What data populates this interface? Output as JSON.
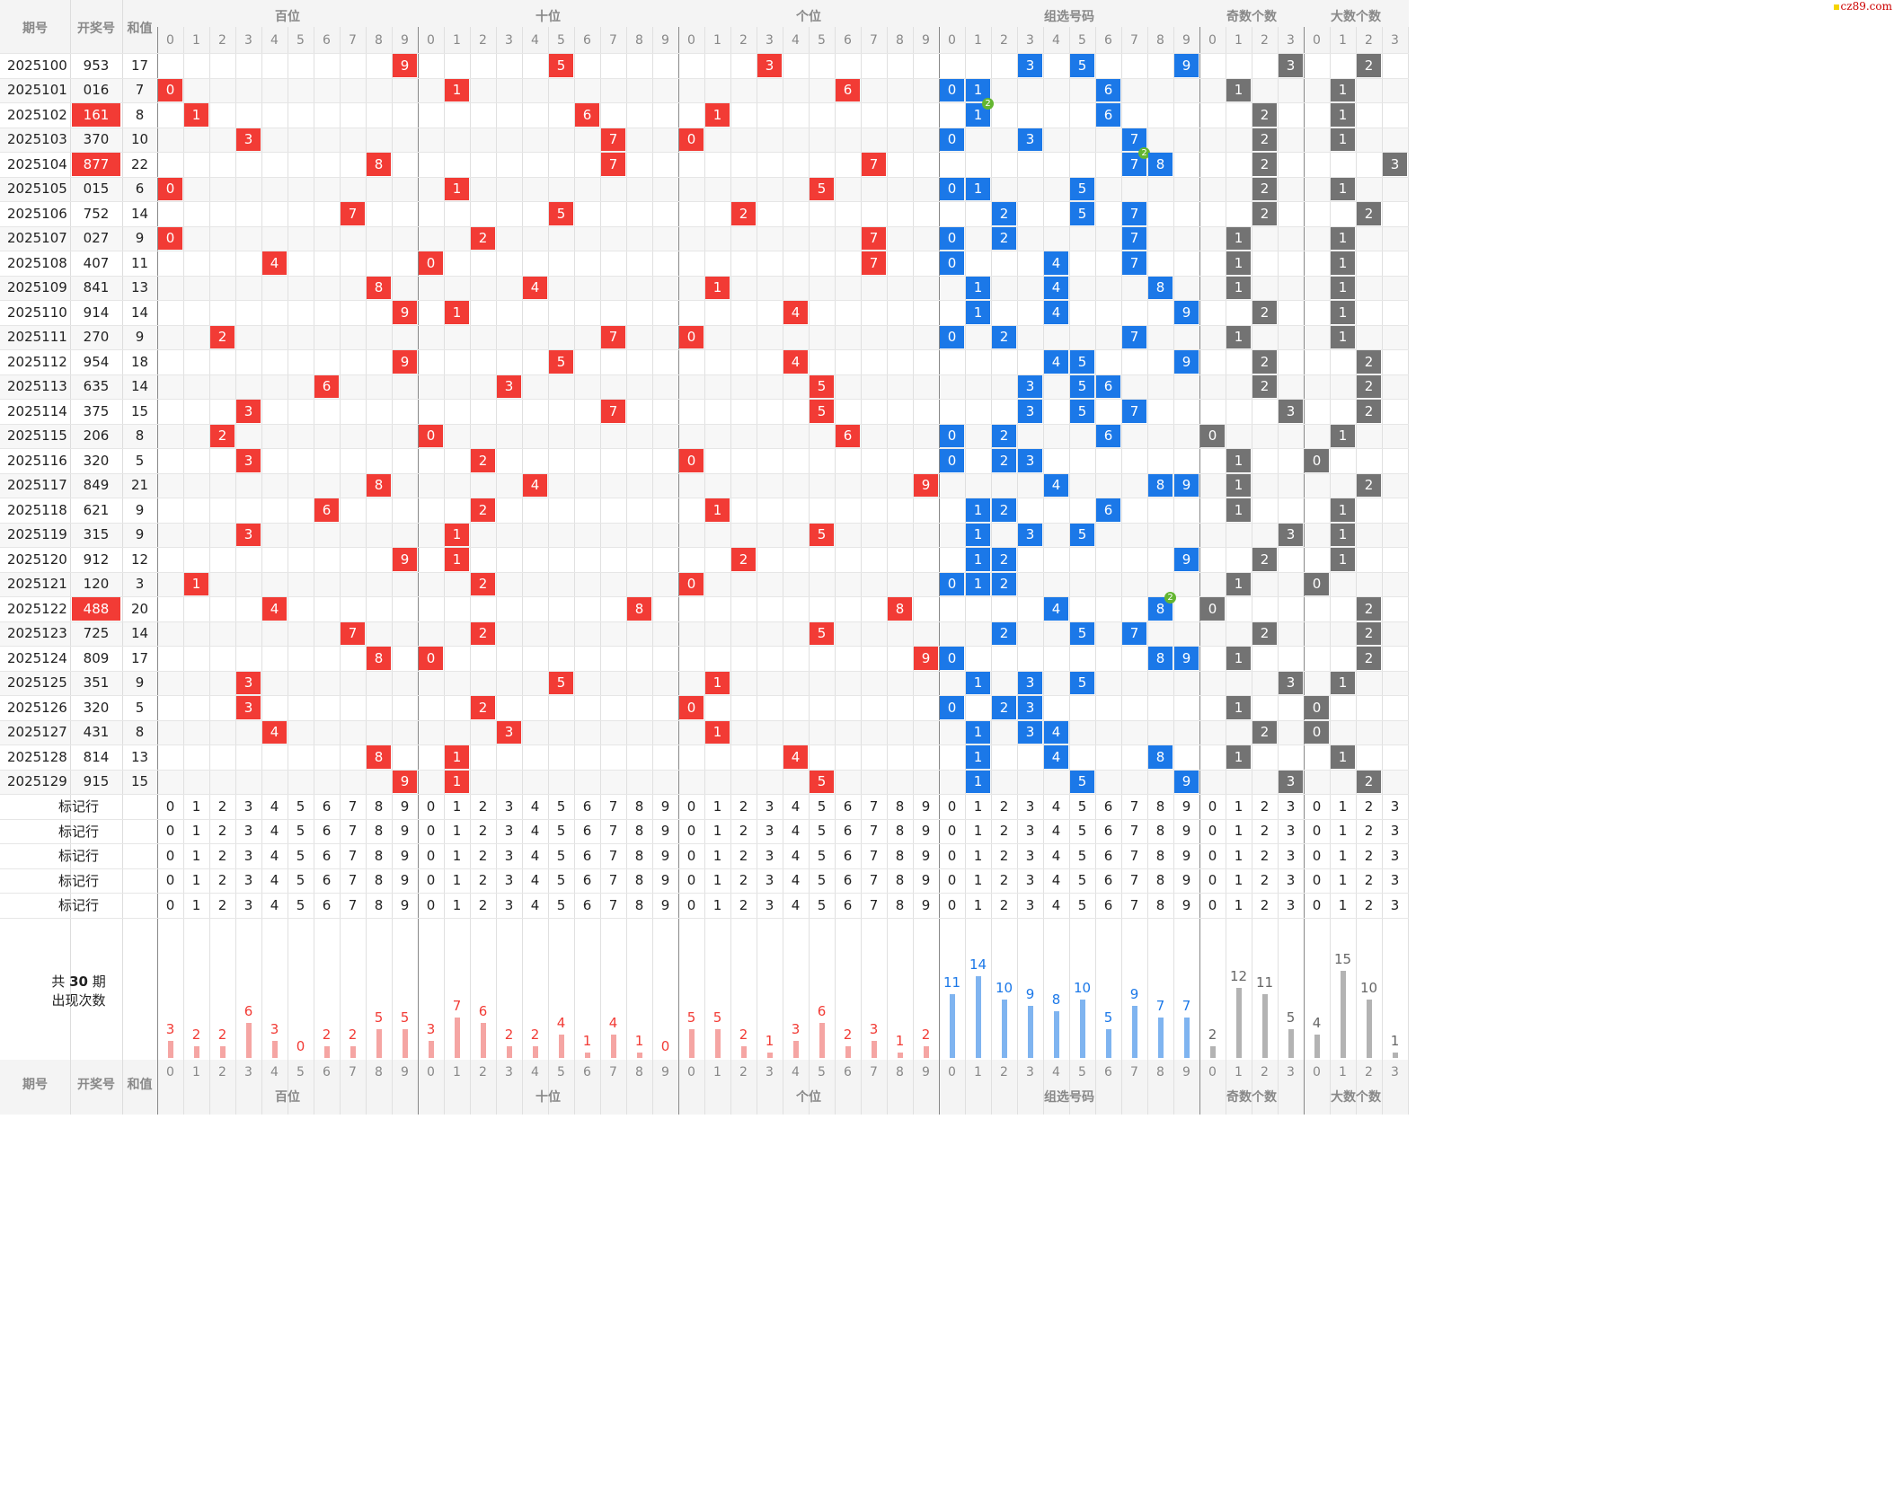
{
  "watermark": "cz89.com",
  "header": {
    "issue_label": "期号",
    "draw_label": "开奖号",
    "sum_label": "和值",
    "groups": [
      "百位",
      "十位",
      "个位",
      "组选号码",
      "奇数个数",
      "大数个数"
    ],
    "digits10": [
      "0",
      "1",
      "2",
      "3",
      "4",
      "5",
      "6",
      "7",
      "8",
      "9"
    ],
    "digits4": [
      "0",
      "1",
      "2",
      "3"
    ]
  },
  "colors": {
    "red": "#f23b35",
    "blue": "#1b78e8",
    "gray": "#737373",
    "bar_red": "#f5a5a3",
    "bar_blue": "#7fb4f0",
    "bar_gray": "#b3b3b3"
  },
  "rows": [
    {
      "issue": "2025100",
      "num": "953",
      "sum": "17",
      "hl": false
    },
    {
      "issue": "2025101",
      "num": "016",
      "sum": "7",
      "hl": false
    },
    {
      "issue": "2025102",
      "num": "161",
      "sum": "8",
      "hl": true
    },
    {
      "issue": "2025103",
      "num": "370",
      "sum": "10",
      "hl": false
    },
    {
      "issue": "2025104",
      "num": "877",
      "sum": "22",
      "hl": true
    },
    {
      "issue": "2025105",
      "num": "015",
      "sum": "6",
      "hl": false
    },
    {
      "issue": "2025106",
      "num": "752",
      "sum": "14",
      "hl": false
    },
    {
      "issue": "2025107",
      "num": "027",
      "sum": "9",
      "hl": false
    },
    {
      "issue": "2025108",
      "num": "407",
      "sum": "11",
      "hl": false
    },
    {
      "issue": "2025109",
      "num": "841",
      "sum": "13",
      "hl": false
    },
    {
      "issue": "2025110",
      "num": "914",
      "sum": "14",
      "hl": false
    },
    {
      "issue": "2025111",
      "num": "270",
      "sum": "9",
      "hl": false
    },
    {
      "issue": "2025112",
      "num": "954",
      "sum": "18",
      "hl": false
    },
    {
      "issue": "2025113",
      "num": "635",
      "sum": "14",
      "hl": false
    },
    {
      "issue": "2025114",
      "num": "375",
      "sum": "15",
      "hl": false
    },
    {
      "issue": "2025115",
      "num": "206",
      "sum": "8",
      "hl": false
    },
    {
      "issue": "2025116",
      "num": "320",
      "sum": "5",
      "hl": false
    },
    {
      "issue": "2025117",
      "num": "849",
      "sum": "21",
      "hl": false
    },
    {
      "issue": "2025118",
      "num": "621",
      "sum": "9",
      "hl": false
    },
    {
      "issue": "2025119",
      "num": "315",
      "sum": "9",
      "hl": false
    },
    {
      "issue": "2025120",
      "num": "912",
      "sum": "12",
      "hl": false
    },
    {
      "issue": "2025121",
      "num": "120",
      "sum": "3",
      "hl": false
    },
    {
      "issue": "2025122",
      "num": "488",
      "sum": "20",
      "hl": true
    },
    {
      "issue": "2025123",
      "num": "725",
      "sum": "14",
      "hl": false
    },
    {
      "issue": "2025124",
      "num": "809",
      "sum": "17",
      "hl": false
    },
    {
      "issue": "2025125",
      "num": "351",
      "sum": "9",
      "hl": false
    },
    {
      "issue": "2025126",
      "num": "320",
      "sum": "5",
      "hl": false
    },
    {
      "issue": "2025127",
      "num": "431",
      "sum": "8",
      "hl": false
    },
    {
      "issue": "2025128",
      "num": "814",
      "sum": "13",
      "hl": false
    },
    {
      "issue": "2025129",
      "num": "915",
      "sum": "15",
      "hl": false
    }
  ],
  "marker_rows": [
    "标记行",
    "标记行",
    "标记行",
    "标记行",
    "标记行"
  ],
  "stats": {
    "label_prefix": "共",
    "period_count": "30",
    "label_suffix": "期",
    "label2": "出现次数",
    "hundreds": [
      3,
      2,
      2,
      6,
      3,
      0,
      2,
      2,
      5,
      5
    ],
    "tens": [
      3,
      7,
      6,
      2,
      2,
      4,
      1,
      4,
      1,
      0
    ],
    "units": [
      5,
      5,
      2,
      1,
      3,
      6,
      2,
      3,
      1,
      2
    ],
    "group": [
      11,
      14,
      10,
      9,
      8,
      10,
      5,
      9,
      7,
      7
    ],
    "odd": [
      2,
      12,
      11,
      5
    ],
    "big": [
      4,
      15,
      10,
      1
    ]
  }
}
